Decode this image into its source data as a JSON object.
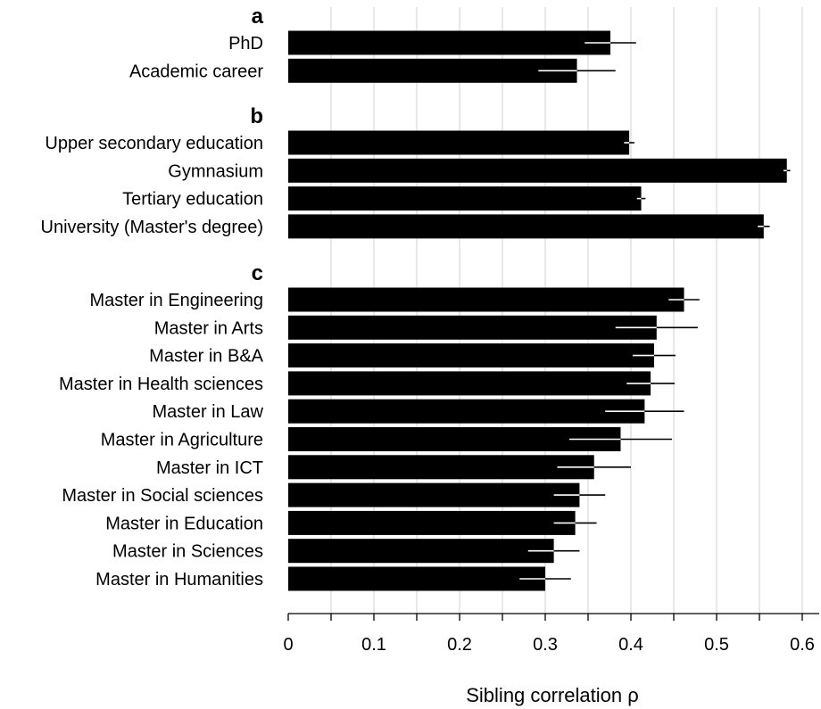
{
  "chart_data": {
    "type": "bar",
    "orientation": "horizontal",
    "xlabel": "Sibling correlation ρ",
    "xlim": [
      0,
      0.62
    ],
    "xticks": [
      0,
      0.1,
      0.2,
      0.3,
      0.4,
      0.5,
      0.6
    ],
    "xtick_labels": [
      "0",
      "0.1",
      "0.2",
      "0.3",
      "0.4",
      "0.5",
      "0.6"
    ],
    "grid": "vertical",
    "bar_color": "#000000",
    "grid_color": "#d9d9d9",
    "panels": [
      {
        "label": "a",
        "categories": [
          "PhD",
          "Academic career"
        ],
        "values": [
          0.376,
          0.337
        ],
        "errors": [
          0.03,
          0.045
        ]
      },
      {
        "label": "b",
        "categories": [
          "Upper secondary education",
          "Gymnasium",
          "Tertiary education",
          "University (Master's degree)"
        ],
        "values": [
          0.398,
          0.582,
          0.412,
          0.555
        ],
        "errors": [
          0.006,
          0.004,
          0.005,
          0.007
        ]
      },
      {
        "label": "c",
        "categories": [
          "Master in Engineering",
          "Master in Arts",
          "Master in B&A",
          "Master in Health sciences",
          "Master in Law",
          "Master in Agriculture",
          "Master in ICT",
          "Master in Social sciences",
          "Master in Education",
          "Master in Sciences",
          "Master in Humanities"
        ],
        "values": [
          0.462,
          0.43,
          0.427,
          0.423,
          0.416,
          0.388,
          0.357,
          0.34,
          0.335,
          0.31,
          0.3
        ],
        "errors": [
          0.018,
          0.048,
          0.025,
          0.028,
          0.046,
          0.06,
          0.043,
          0.03,
          0.025,
          0.03,
          0.03
        ]
      }
    ]
  }
}
